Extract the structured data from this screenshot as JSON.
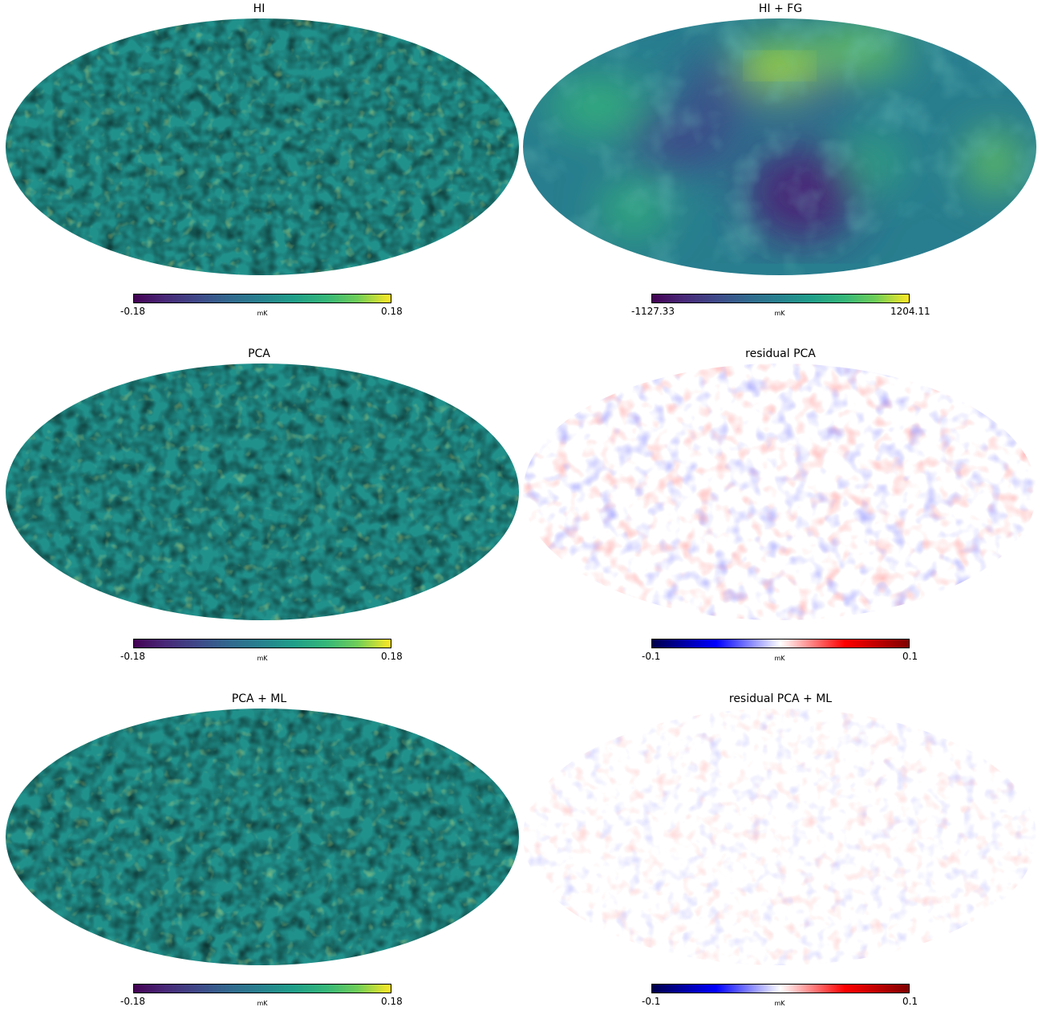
{
  "panels": [
    {
      "title": "HI",
      "cmap": "viridis",
      "min": "-0.18",
      "max": "0.18",
      "unit": "mK"
    },
    {
      "title": "HI + FG",
      "cmap": "viridis",
      "min": "-1127.33",
      "max": "1204.11",
      "unit": "mK"
    },
    {
      "title": "PCA",
      "cmap": "viridis",
      "min": "-0.18",
      "max": "0.18",
      "unit": "mK"
    },
    {
      "title": "residual PCA",
      "cmap": "seismic",
      "min": "-0.1",
      "max": "0.1",
      "unit": "mK"
    },
    {
      "title": "PCA + ML",
      "cmap": "viridis",
      "min": "-0.18",
      "max": "0.18",
      "unit": "mK"
    },
    {
      "title": "residual PCA + ML",
      "cmap": "seismic",
      "min": "-0.1",
      "max": "0.1",
      "unit": "mK"
    }
  ],
  "colors": {
    "viridis": [
      "#440154",
      "#3e4989",
      "#26828e",
      "#35b779",
      "#fde725"
    ],
    "seismic": [
      "#00004c",
      "#0000ff",
      "#ffffff",
      "#ff0000",
      "#7f0000"
    ]
  }
}
